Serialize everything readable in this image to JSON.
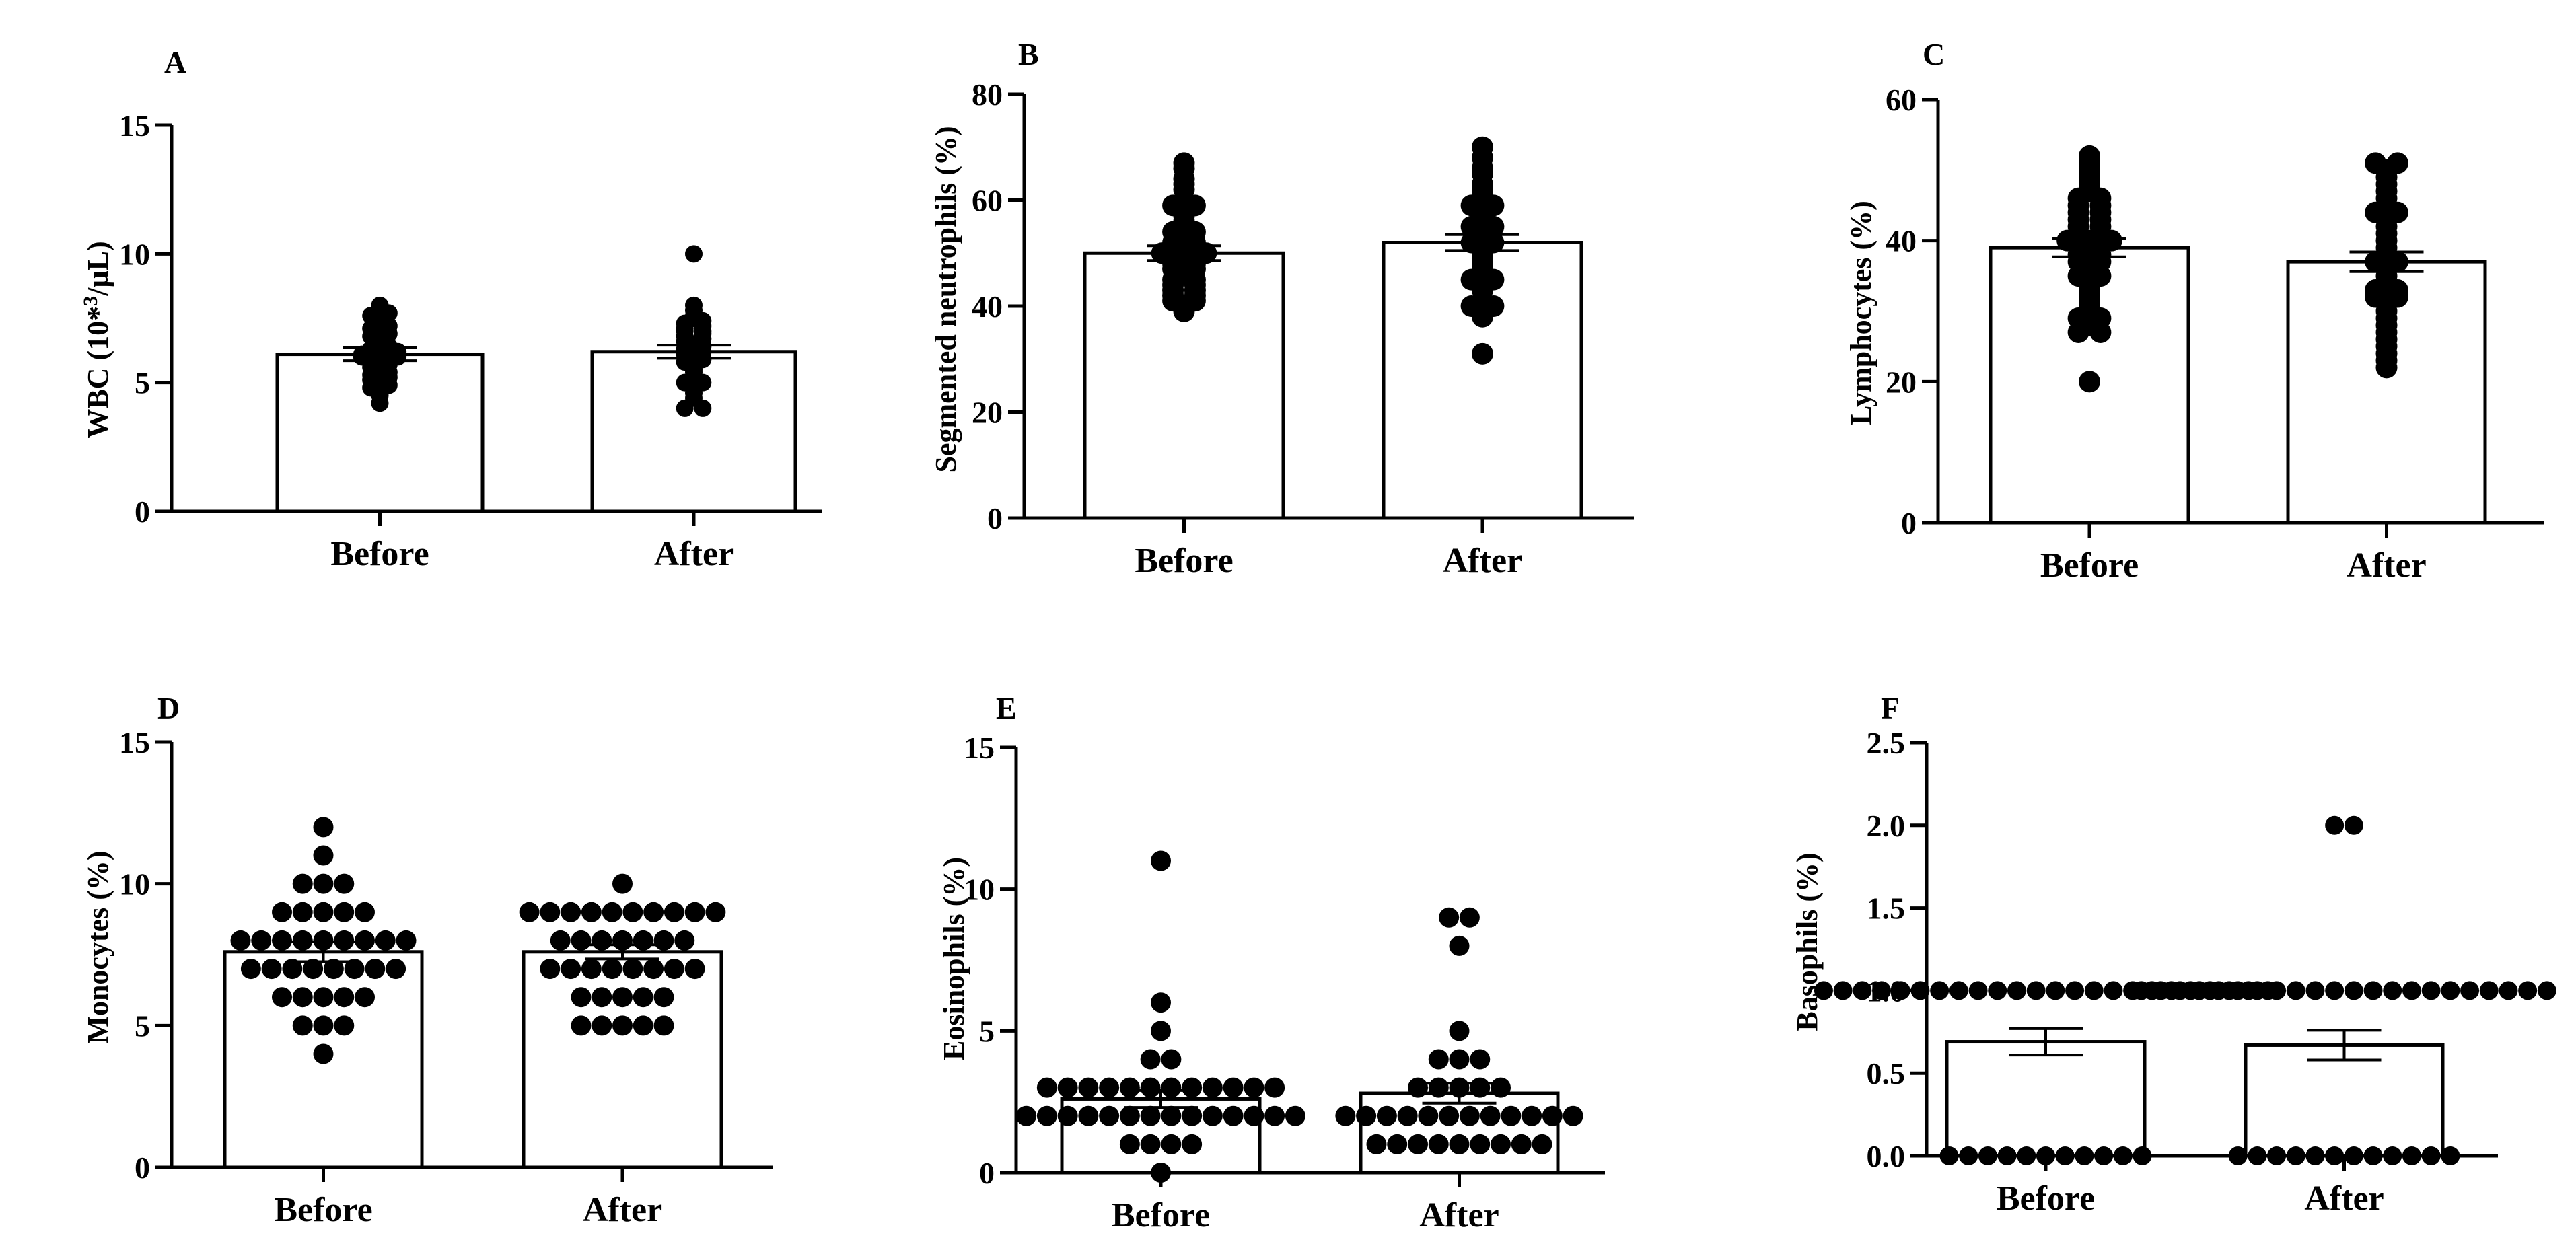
{
  "figure": {
    "background": "#ffffff",
    "ink": "#000000",
    "bar_fill": "#ffffff"
  },
  "chart_data": [
    {
      "type": "bar",
      "panel": "A",
      "title": "",
      "ylabel": "WBC (10*3/µL)",
      "ylabel_parts": [
        "WBC (10*",
        "3",
        "/µL)"
      ],
      "categories": [
        "Before",
        "After"
      ],
      "values": [
        6.1,
        6.2
      ],
      "errors": [
        0.25,
        0.25
      ],
      "ylim": [
        0,
        15
      ],
      "yticks": [
        0,
        5,
        10,
        15
      ],
      "ytick_labels": [
        "0",
        "5",
        "10",
        "15"
      ],
      "points": [
        [
          4.2,
          4.5,
          4.6,
          4.8,
          4.9,
          5.0,
          5.1,
          5.2,
          5.3,
          5.4,
          5.5,
          5.6,
          5.7,
          5.8,
          5.9,
          6.0,
          6.0,
          6.0,
          6.1,
          6.1,
          6.2,
          6.3,
          6.4,
          6.5,
          6.6,
          6.8,
          6.9,
          7.0,
          7.1,
          7.2,
          7.4,
          7.5,
          7.6,
          7.7,
          7.8,
          8.0
        ],
        [
          4.0,
          4.0,
          4.4,
          4.6,
          4.8,
          5.0,
          5.0,
          5.2,
          5.4,
          5.5,
          5.6,
          5.8,
          5.9,
          6.0,
          6.1,
          6.2,
          6.3,
          6.4,
          6.5,
          6.6,
          6.7,
          6.8,
          6.9,
          7.0,
          7.0,
          7.1,
          7.2,
          7.3,
          7.4,
          7.5,
          7.6,
          7.8,
          8.0,
          10.0
        ]
      ]
    },
    {
      "type": "bar",
      "panel": "B",
      "title": "",
      "ylabel": "Segmented neutrophils (%)",
      "categories": [
        "Before",
        "After"
      ],
      "values": [
        50,
        52
      ],
      "errors": [
        1.4,
        1.5
      ],
      "ylim": [
        0,
        80
      ],
      "yticks": [
        0,
        20,
        40,
        60,
        80
      ],
      "ytick_labels": [
        "0",
        "20",
        "40",
        "60",
        "80"
      ],
      "points": [
        [
          39,
          40,
          41,
          41,
          42,
          42,
          43,
          43,
          44,
          44,
          45,
          45,
          46,
          47,
          47,
          48,
          48,
          49,
          50,
          50,
          50,
          51,
          52,
          52,
          53,
          54,
          54,
          55,
          56,
          57,
          58,
          59,
          59,
          60,
          62,
          63,
          64,
          66,
          67
        ],
        [
          31,
          38,
          40,
          40,
          41,
          43,
          44,
          45,
          45,
          46,
          47,
          48,
          49,
          50,
          51,
          52,
          52,
          53,
          54,
          55,
          55,
          56,
          57,
          58,
          59,
          59,
          60,
          61,
          62,
          63,
          65,
          66,
          68,
          70
        ]
      ]
    },
    {
      "type": "bar",
      "panel": "C",
      "title": "",
      "ylabel": "Lymphocytes (%)",
      "categories": [
        "Before",
        "After"
      ],
      "values": [
        39,
        37
      ],
      "errors": [
        1.3,
        1.4
      ],
      "ylim": [
        0,
        60
      ],
      "yticks": [
        0,
        20,
        40,
        60
      ],
      "ytick_labels": [
        "0",
        "20",
        "40",
        "60"
      ],
      "points": [
        [
          20,
          27,
          27,
          28,
          29,
          29,
          30,
          31,
          32,
          33,
          34,
          35,
          35,
          36,
          37,
          37,
          38,
          38,
          39,
          40,
          40,
          40,
          41,
          41,
          42,
          42,
          43,
          43,
          44,
          44,
          45,
          45,
          46,
          46,
          47,
          48,
          49,
          50,
          51,
          52
        ],
        [
          22,
          23,
          24,
          25,
          26,
          27,
          28,
          29,
          30,
          31,
          32,
          32,
          33,
          33,
          34,
          35,
          36,
          37,
          37,
          38,
          39,
          40,
          41,
          42,
          43,
          44,
          44,
          45,
          46,
          47,
          48,
          49,
          50,
          51,
          51
        ]
      ]
    },
    {
      "type": "bar",
      "panel": "D",
      "title": "",
      "ylabel": "Monocytes (%)",
      "categories": [
        "Before",
        "After"
      ],
      "values": [
        7.6,
        7.6
      ],
      "errors": [
        0.35,
        0.25
      ],
      "ylim": [
        0,
        15
      ],
      "yticks": [
        0,
        5,
        10,
        15
      ],
      "ytick_labels": [
        "0",
        "5",
        "10",
        "15"
      ],
      "points": [
        [
          4,
          5,
          5,
          5,
          6,
          6,
          6,
          6,
          6,
          7,
          7,
          7,
          7,
          7,
          7,
          7,
          7,
          8,
          8,
          8,
          8,
          8,
          8,
          8,
          8,
          8,
          9,
          9,
          9,
          9,
          9,
          10,
          10,
          10,
          11,
          12
        ],
        [
          5,
          5,
          5,
          5,
          5,
          6,
          6,
          6,
          6,
          6,
          7,
          7,
          7,
          7,
          7,
          7,
          7,
          7,
          8,
          8,
          8,
          8,
          8,
          8,
          8,
          9,
          9,
          9,
          9,
          9,
          9,
          9,
          9,
          9,
          9,
          10
        ]
      ]
    },
    {
      "type": "bar",
      "panel": "E",
      "title": "",
      "ylabel": "Eosinophils (%)",
      "categories": [
        "Before",
        "After"
      ],
      "values": [
        2.6,
        2.8
      ],
      "errors": [
        0.3,
        0.35
      ],
      "ylim": [
        0,
        15
      ],
      "yticks": [
        0,
        5,
        10,
        15
      ],
      "ytick_labels": [
        "0",
        "5",
        "10",
        "15"
      ],
      "points": [
        [
          0,
          1,
          1,
          1,
          1,
          2,
          2,
          2,
          2,
          2,
          2,
          2,
          2,
          2,
          2,
          2,
          2,
          2,
          2,
          3,
          3,
          3,
          3,
          3,
          3,
          3,
          3,
          3,
          3,
          3,
          3,
          4,
          4,
          5,
          6,
          11
        ],
        [
          1,
          1,
          1,
          1,
          1,
          1,
          1,
          1,
          1,
          2,
          2,
          2,
          2,
          2,
          2,
          2,
          2,
          2,
          2,
          2,
          2,
          3,
          3,
          3,
          3,
          3,
          4,
          4,
          4,
          5,
          8,
          9,
          9
        ]
      ]
    },
    {
      "type": "bar",
      "panel": "F",
      "title": "",
      "ylabel": "Basophils (%)",
      "categories": [
        "Before",
        "After"
      ],
      "values": [
        0.69,
        0.67
      ],
      "errors": [
        0.08,
        0.09
      ],
      "ylim": [
        0,
        2.5
      ],
      "yticks": [
        0,
        0.5,
        1.0,
        1.5,
        2.0,
        2.5
      ],
      "ytick_labels": [
        "0.0",
        "0.5",
        "1.0",
        "1.5",
        "2.0",
        "2.5"
      ],
      "points": [
        [
          0,
          0,
          0,
          0,
          0,
          0,
          0,
          0,
          0,
          0,
          0,
          1,
          1,
          1,
          1,
          1,
          1,
          1,
          1,
          1,
          1,
          1,
          1,
          1,
          1,
          1,
          1,
          1,
          1,
          1,
          1,
          1,
          1,
          1,
          1
        ],
        [
          0,
          0,
          0,
          0,
          0,
          0,
          0,
          0,
          0,
          0,
          0,
          0,
          1,
          1,
          1,
          1,
          1,
          1,
          1,
          1,
          1,
          1,
          1,
          1,
          1,
          1,
          1,
          1,
          1,
          1,
          1,
          1,
          1,
          1,
          2,
          2
        ]
      ]
    }
  ]
}
